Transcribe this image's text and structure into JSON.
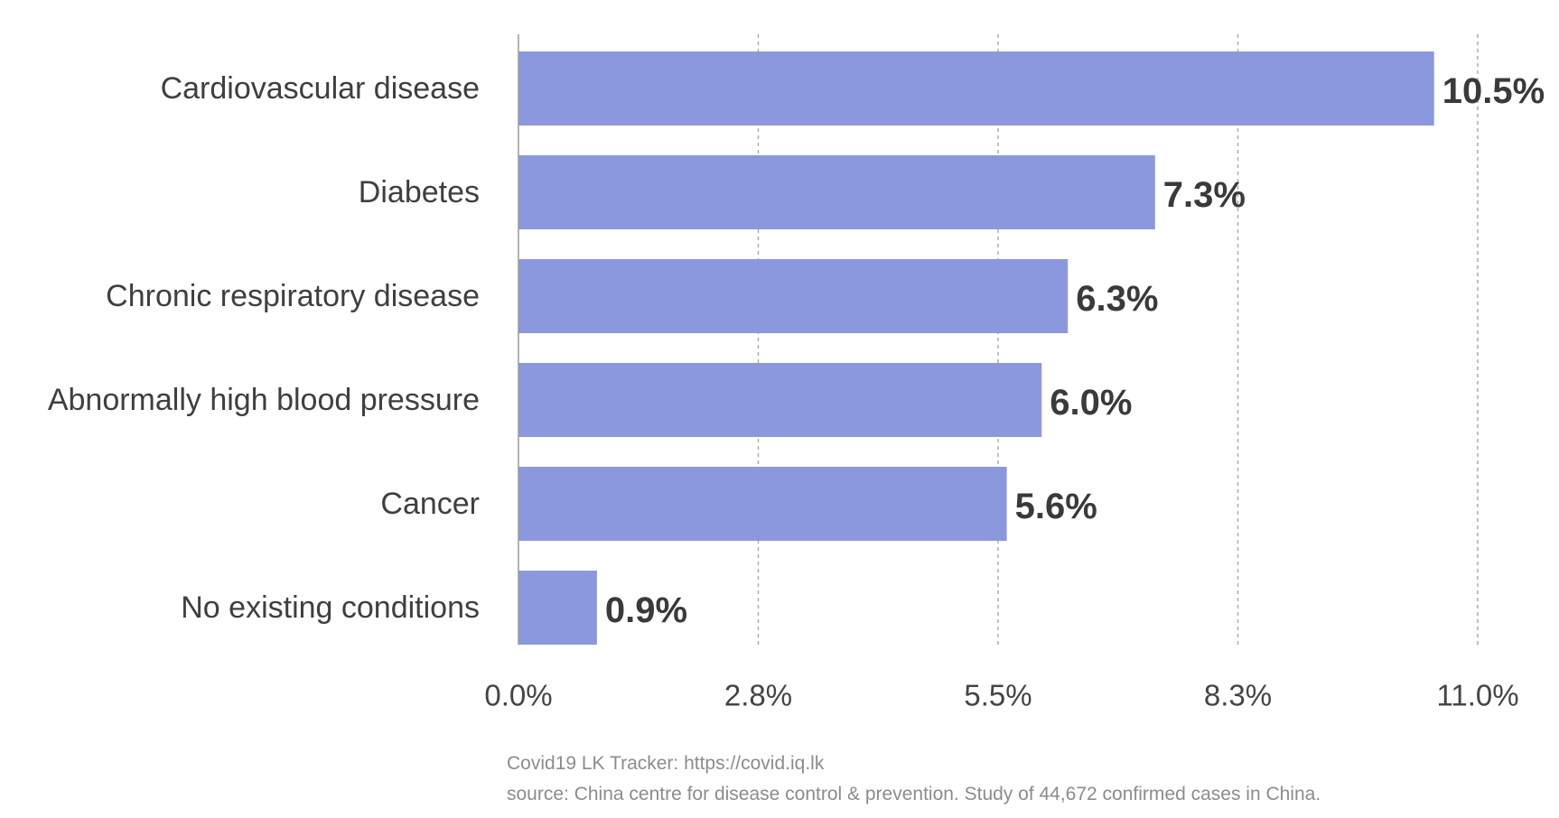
{
  "chart_data": {
    "type": "bar",
    "orientation": "horizontal",
    "categories": [
      "Cardiovascular disease",
      "Diabetes",
      "Chronic respiratory disease",
      "Abnormally high blood pressure",
      "Cancer",
      "No existing conditions"
    ],
    "values": [
      10.5,
      7.3,
      6.3,
      6.0,
      5.6,
      0.9
    ],
    "value_labels": [
      "10.5%",
      "7.3%",
      "6.3%",
      "6.0%",
      "5.6%",
      "0.9%"
    ],
    "xticks": [
      0,
      2.75,
      5.5,
      8.25,
      11.0
    ],
    "xtick_labels": [
      "0.0%",
      "2.8%",
      "5.5%",
      "8.3%",
      "11.0%"
    ],
    "xlim": [
      0,
      11.0
    ],
    "grid": "vertical-dotted",
    "bar_color": "#8c98de"
  },
  "footer": {
    "credit": "Covid19 LK Tracker: https://covid.iq.lk",
    "source": "source: China centre for disease control & prevention. Study of 44,672 confirmed cases in China."
  }
}
